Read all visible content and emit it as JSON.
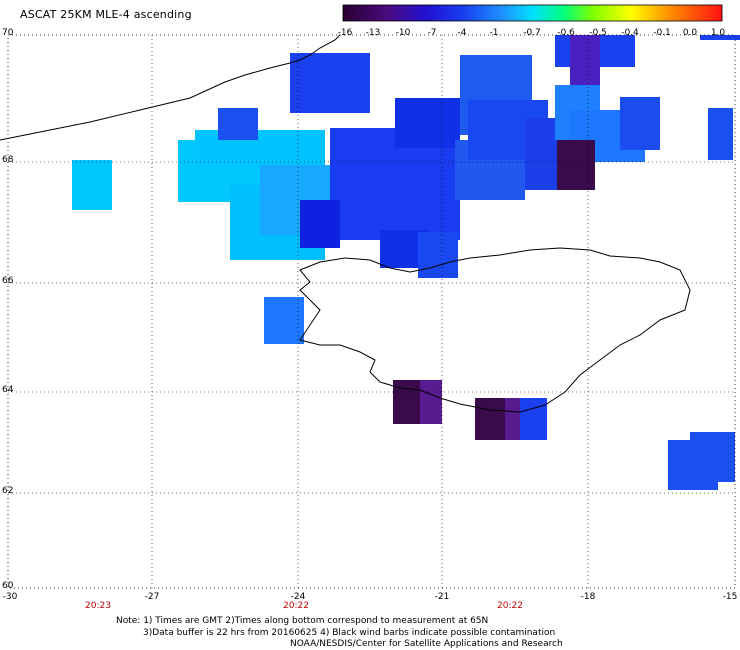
{
  "title": "ASCAT 25KM MLE-4 ascending",
  "colorbar": {
    "labels": [
      "-16",
      "-13",
      "-10",
      "-7",
      "-4",
      "-1",
      "-0.7",
      "-0.6",
      "-0.5",
      "-0.4",
      "-0.1",
      "0.0",
      "1.0"
    ]
  },
  "axes": {
    "lon_ticks": [
      "-30",
      "-27",
      "-24",
      "-21",
      "-18",
      "-15"
    ],
    "lat_ticks": [
      "70",
      "68",
      "66",
      "64",
      "62",
      "60"
    ],
    "times": [
      "20:23",
      "20:22",
      "20:22"
    ]
  },
  "notes": {
    "line1": "Note: 1) Times are GMT 2)Times along bottom correspond to measurement at 65N",
    "line2": "3)Data buffer is 22 hrs from 20160625 4) Black wind barbs indicate possible contamination",
    "line3": "NOAA/NESDIS/Center for Satellite Applications and Research"
  },
  "colors": {
    "purple_dark": "#3a0a4a",
    "purple": "#5a1a90",
    "blue_deep": "#1010d8",
    "blue": "#1a3cf0",
    "blue_mid": "#2058f0",
    "blue_light": "#1e90ff",
    "cyan": "#00bfff",
    "cyan_light": "#00d8ff"
  }
}
